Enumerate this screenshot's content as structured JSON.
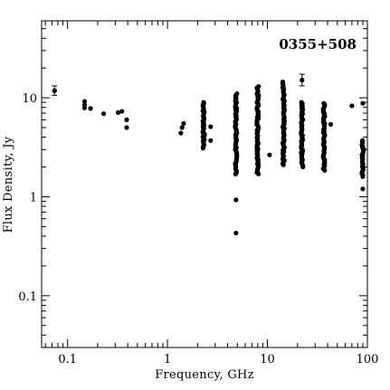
{
  "chart_data": {
    "type": "scatter",
    "title": "0355+508",
    "xlabel": "Frequency, GHz",
    "ylabel": "Flux Density, Jy",
    "xscale": "log",
    "yscale": "log",
    "xlim": [
      0.055,
      100
    ],
    "ylim": [
      0.03,
      60
    ],
    "x_ticks": [
      0.1,
      1,
      10,
      100
    ],
    "x_tick_labels": [
      "0.1",
      "1",
      "10",
      "100"
    ],
    "y_ticks": [
      0.1,
      1,
      10
    ],
    "y_tick_labels": [
      "0.1",
      "1",
      "10"
    ],
    "grid": false,
    "legend": "none",
    "marker_color": "#000000",
    "points": [
      {
        "x": 0.074,
        "y": 11.8
      },
      {
        "x": 0.148,
        "y": 9.2
      },
      {
        "x": 0.148,
        "y": 8.5
      },
      {
        "x": 0.148,
        "y": 7.9
      },
      {
        "x": 0.17,
        "y": 7.8
      },
      {
        "x": 0.23,
        "y": 6.9
      },
      {
        "x": 0.32,
        "y": 7.1
      },
      {
        "x": 0.35,
        "y": 7.3
      },
      {
        "x": 0.39,
        "y": 6.0
      },
      {
        "x": 0.39,
        "y": 5.0
      },
      {
        "x": 1.36,
        "y": 4.4
      },
      {
        "x": 1.4,
        "y": 5.0
      },
      {
        "x": 1.45,
        "y": 5.5
      },
      {
        "x": 2.7,
        "y": 5.1
      },
      {
        "x": 2.7,
        "y": 3.7
      },
      {
        "x": 4.85,
        "y": 0.93
      },
      {
        "x": 4.85,
        "y": 0.43
      },
      {
        "x": 10.5,
        "y": 2.65
      },
      {
        "x": 43,
        "y": 5.4
      },
      {
        "x": 70,
        "y": 8.3
      },
      {
        "x": 90,
        "y": 8.8
      },
      {
        "x": 90,
        "y": 1.2
      }
    ],
    "error_points": [
      {
        "x": 0.074,
        "y": 11.8,
        "ylo": 10.6,
        "yhi": 13.2
      },
      {
        "x": 22.2,
        "y": 15.1,
        "ylo": 13.2,
        "yhi": 17.3
      }
    ],
    "vertical_ranges": [
      {
        "x": 2.3,
        "ymin": 3.1,
        "ymax": 9.0
      },
      {
        "x": 4.85,
        "ymin": 1.7,
        "ymax": 11.0
      },
      {
        "x": 8.0,
        "ymin": 1.7,
        "ymax": 13.0
      },
      {
        "x": 14.5,
        "ymin": 2.1,
        "ymax": 14.5
      },
      {
        "x": 22.2,
        "ymin": 2.0,
        "ymax": 9.0
      },
      {
        "x": 36.8,
        "ymin": 1.85,
        "ymax": 8.8
      },
      {
        "x": 90,
        "ymin": 1.6,
        "ymax": 3.7
      }
    ]
  }
}
